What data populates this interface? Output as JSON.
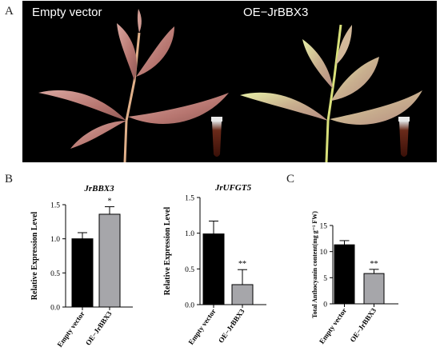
{
  "panels": {
    "a": "A",
    "b": "B",
    "c": "C"
  },
  "photo": {
    "left_label": "Empty vector",
    "right_label": "OE−JrBBX3"
  },
  "colors": {
    "empty_vector_bar": "#000000",
    "oe_bar": "#a6a6aa"
  },
  "chart_data": [
    {
      "type": "bar",
      "title": "JrBBX3",
      "ylabel": "Relative Expression Level",
      "xlabel": "",
      "categories": [
        "Empty vector",
        "OE−JrBBX3"
      ],
      "values": [
        1.0,
        1.36
      ],
      "errors": [
        0.09,
        0.11
      ],
      "significance": [
        "",
        "*"
      ],
      "ylim": [
        0,
        1.5
      ],
      "yticks": [
        "0.0",
        "0.5",
        "1.0",
        "1.5"
      ],
      "grid": false
    },
    {
      "type": "bar",
      "title": "JrUFGT5",
      "ylabel": "Relative Expression Level",
      "xlabel": "",
      "categories": [
        "Empty vector",
        "OE−JrBBX3"
      ],
      "values": [
        0.99,
        0.28
      ],
      "errors": [
        0.18,
        0.21
      ],
      "significance": [
        "",
        "**"
      ],
      "ylim": [
        0,
        1.5
      ],
      "yticks": [
        "0.0",
        "0.5",
        "1.0",
        "1.5"
      ],
      "grid": false
    },
    {
      "type": "bar",
      "title": "",
      "ylabel": "Total Anthocyanin content(mg g⁻¹ FW)",
      "xlabel": "",
      "categories": [
        "Empty vector",
        "OE−JrBBX3"
      ],
      "values": [
        11.3,
        5.8
      ],
      "errors": [
        0.8,
        0.8
      ],
      "significance": [
        "",
        "**"
      ],
      "ylim": [
        0,
        15
      ],
      "yticks": [
        "0",
        "5",
        "10",
        "15"
      ],
      "grid": false
    }
  ]
}
